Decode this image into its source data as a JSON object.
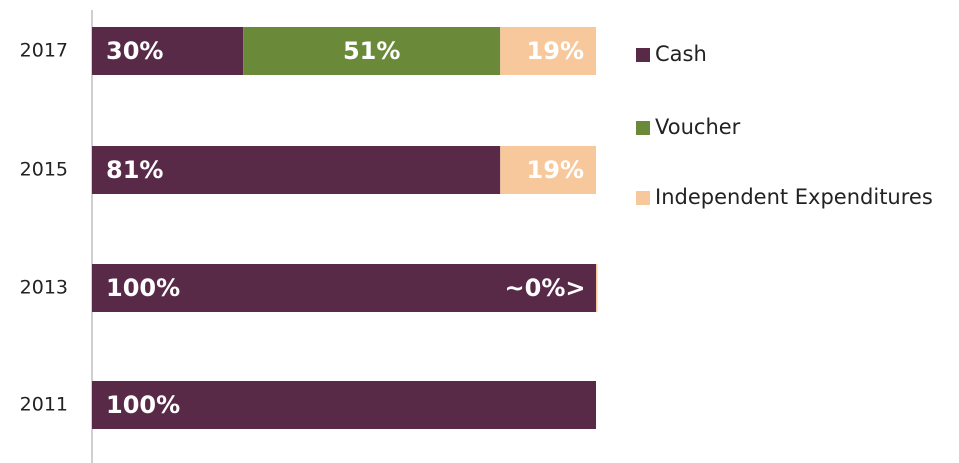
{
  "chart_data": {
    "type": "stacked-barh",
    "categories": [
      "2017",
      "2015",
      "2013",
      "2011"
    ],
    "series": [
      {
        "name": "Cash",
        "color": "#582a48",
        "values": [
          30,
          81,
          100,
          100
        ],
        "value_labels": [
          "30%",
          "81%",
          "100%",
          "100%"
        ]
      },
      {
        "name": "Voucher",
        "color": "#6a8a3a",
        "values": [
          51,
          0,
          0,
          0
        ],
        "value_labels": [
          "51%",
          null,
          null,
          null
        ]
      },
      {
        "name": "Independent Expenditures",
        "color": "#f7c89b",
        "values": [
          19,
          19,
          0.3,
          0
        ],
        "value_labels": [
          "19%",
          "19%",
          "~0%>",
          null
        ]
      }
    ],
    "xlim": [
      0,
      100
    ]
  }
}
